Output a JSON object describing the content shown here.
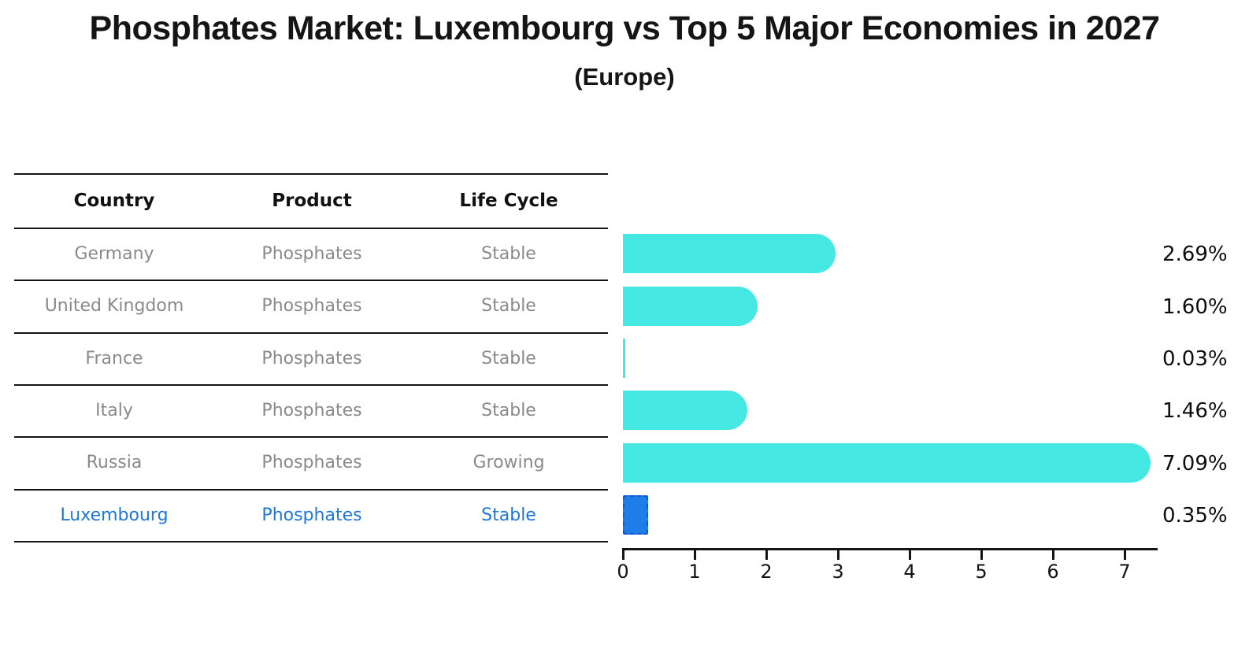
{
  "title": "Phosphates Market: Luxembourg vs Top 5 Major Economies in 2027",
  "subtitle": "(Europe)",
  "table": {
    "headers": [
      "Country",
      "Product",
      "Life Cycle"
    ],
    "rows": [
      {
        "country": "Germany",
        "product": "Phosphates",
        "life_cycle": "Stable",
        "highlight": false
      },
      {
        "country": "United Kingdom",
        "product": "Phosphates",
        "life_cycle": "Stable",
        "highlight": false
      },
      {
        "country": "France",
        "product": "Phosphates",
        "life_cycle": "Stable",
        "highlight": false
      },
      {
        "country": "Italy",
        "product": "Phosphates",
        "life_cycle": "Stable",
        "highlight": false
      },
      {
        "country": "Russia",
        "product": "Phosphates",
        "life_cycle": "Growing",
        "highlight": false
      },
      {
        "country": "Luxembourg",
        "product": "Phosphates",
        "life_cycle": "Stable",
        "highlight": true
      }
    ]
  },
  "chart_data": {
    "type": "bar",
    "orientation": "horizontal",
    "title": "Phosphates Market: Luxembourg vs Top 5 Major Economies in 2027 (Europe)",
    "categories": [
      "Germany",
      "United Kingdom",
      "France",
      "Italy",
      "Russia",
      "Luxembourg"
    ],
    "values": [
      2.69,
      1.6,
      0.03,
      1.46,
      7.09,
      0.35
    ],
    "value_labels": [
      "2.69%",
      "1.60%",
      "0.03%",
      "1.46%",
      "7.09%",
      "0.35%"
    ],
    "xlabel": "",
    "ylabel": "",
    "xlim": [
      0,
      7.5
    ],
    "xticks": [
      0,
      1,
      2,
      3,
      4,
      5,
      6,
      7
    ],
    "grid": false,
    "legend": "none",
    "highlight_index": 5
  },
  "colors": {
    "bar": "#45E8E2",
    "highlight_fill": "#1E7DE8",
    "highlight_border": "#1259cf",
    "body_text": "#8a8a8a",
    "highlight_text": "#1f78d8"
  }
}
